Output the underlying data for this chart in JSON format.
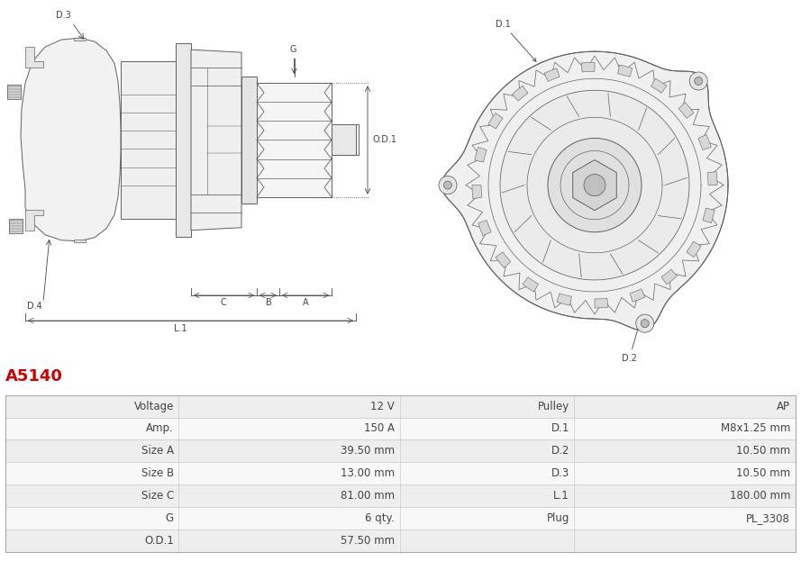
{
  "title": "A5140",
  "title_color": "#cc0000",
  "table_data": [
    [
      "Voltage",
      "12 V",
      "Pulley",
      "AP"
    ],
    [
      "Amp.",
      "150 A",
      "D.1",
      "M8x1.25 mm"
    ],
    [
      "Size A",
      "39.50 mm",
      "D.2",
      "10.50 mm"
    ],
    [
      "Size B",
      "13.00 mm",
      "D.3",
      "10.50 mm"
    ],
    [
      "Size C",
      "81.00 mm",
      "L.1",
      "180.00 mm"
    ],
    [
      "G",
      "6 qty.",
      "Plug",
      "PL_3308"
    ],
    [
      "O.D.1",
      "57.50 mm",
      "",
      ""
    ]
  ],
  "row_bg_odd": "#eeeeee",
  "row_bg_even": "#f8f8f8",
  "text_color": "#444444",
  "border_color": "#cccccc",
  "font_size_title": 13,
  "font_size_table": 8.5,
  "lc": "#606060",
  "lw": 0.7
}
